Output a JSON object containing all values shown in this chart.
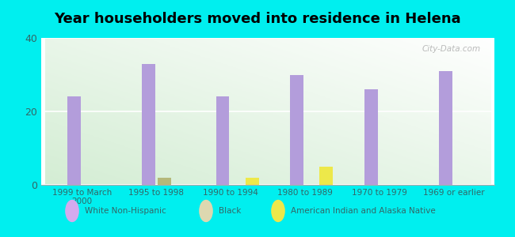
{
  "title": "Year householders moved into residence in Helena",
  "background_color": "#00EFEF",
  "categories": [
    "1999 to March\n2000",
    "1995 to 1998",
    "1990 to 1994",
    "1980 to 1989",
    "1970 to 1979",
    "1969 or earlier"
  ],
  "white_non_hispanic": [
    24,
    33,
    24,
    30,
    26,
    31
  ],
  "black": [
    0,
    2,
    0,
    0,
    0,
    0
  ],
  "american_indian": [
    0,
    0,
    2,
    5,
    0,
    0
  ],
  "white_color": "#b39ddb",
  "black_color": "#b5b87a",
  "indian_color": "#ede84a",
  "bar_width": 0.18,
  "ylim": [
    0,
    40
  ],
  "yticks": [
    0,
    20,
    40
  ],
  "watermark": "City-Data.com",
  "legend_labels": [
    "White Non-Hispanic",
    "Black",
    "American Indian and Alaska Native"
  ],
  "legend_marker_colors": [
    "#d4aaee",
    "#ddd8b0",
    "#ede84a"
  ],
  "tick_color": "#336666",
  "title_fontsize": 13
}
